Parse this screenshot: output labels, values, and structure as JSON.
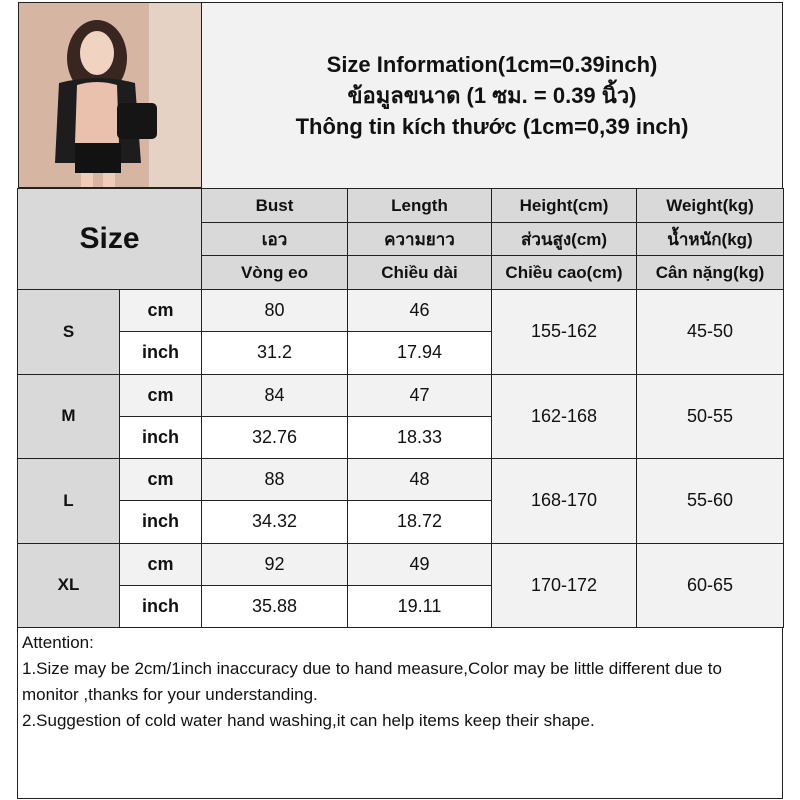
{
  "title_lines": [
    "Size Information(1cm=0.39inch)",
    "ข้อมูลขนาด (1 ซม. = 0.39 นิ้ว)",
    "Thông tin kích thước (1cm=0,39 inch)"
  ],
  "header": {
    "size_label": "Size",
    "columns": [
      [
        "Bust",
        "เอว",
        "Vòng eo"
      ],
      [
        "Length",
        "ความยาว",
        "Chiều dài"
      ],
      [
        "Height(cm)",
        "ส่วนสูง(cm)",
        "Chiều cao(cm)"
      ],
      [
        "Weight(kg)",
        "น้ำหนัก(kg)",
        "Cân nặng(kg)"
      ]
    ]
  },
  "rows": [
    {
      "size": "S",
      "cm": "cm",
      "inch": "inch",
      "bust_cm": "80",
      "bust_in": "31.2",
      "len_cm": "46",
      "len_in": "17.94",
      "height": "155-162",
      "weight": "45-50"
    },
    {
      "size": "M",
      "cm": "cm",
      "inch": "inch",
      "bust_cm": "84",
      "bust_in": "32.76",
      "len_cm": "47",
      "len_in": "18.33",
      "height": "162-168",
      "weight": "50-55"
    },
    {
      "size": "L",
      "cm": "cm",
      "inch": "inch",
      "bust_cm": "88",
      "bust_in": "34.32",
      "len_cm": "48",
      "len_in": "18.72",
      "height": "168-170",
      "weight": "55-60"
    },
    {
      "size": "XL",
      "cm": "cm",
      "inch": "inch",
      "bust_cm": "92",
      "bust_in": "35.88",
      "len_cm": "49",
      "len_in": "19.11",
      "height": "170-172",
      "weight": "60-65"
    }
  ],
  "attention": {
    "heading": "Attention:",
    "line1": "1.Size may be 2cm/1inch inaccuracy due to hand measure,Color may be little different due to monitor ,thanks for your understanding.",
    "line2": "2.Suggestion of cold water hand washing,it can help items keep their shape."
  },
  "colors": {
    "header_gray": "#d9d9d9",
    "light_gray": "#f2f2f2",
    "border": "#222222"
  }
}
